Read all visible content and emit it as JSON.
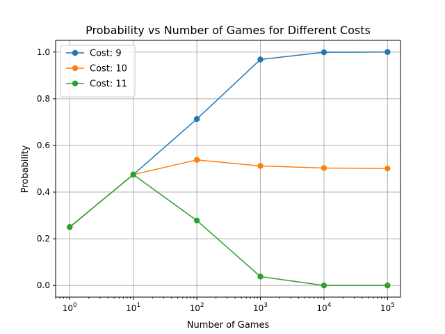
{
  "chart_data": {
    "type": "line",
    "title": "Probability vs Number of Games for Different Costs",
    "xlabel": "Number of Games",
    "ylabel": "Probability",
    "xscale": "log",
    "x": [
      1,
      10,
      100,
      1000,
      10000,
      100000
    ],
    "xlim": [
      0.6,
      160000
    ],
    "ylim": [
      -0.05,
      1.05
    ],
    "x_ticks": [
      {
        "value": 1,
        "base": "10",
        "exp": "0"
      },
      {
        "value": 10,
        "base": "10",
        "exp": "1"
      },
      {
        "value": 100,
        "base": "10",
        "exp": "2"
      },
      {
        "value": 1000,
        "base": "10",
        "exp": "3"
      },
      {
        "value": 10000,
        "base": "10",
        "exp": "4"
      },
      {
        "value": 100000,
        "base": "10",
        "exp": "5"
      }
    ],
    "y_ticks": [
      {
        "value": 0.0,
        "label": "0.0"
      },
      {
        "value": 0.2,
        "label": "0.2"
      },
      {
        "value": 0.4,
        "label": "0.4"
      },
      {
        "value": 0.6,
        "label": "0.6"
      },
      {
        "value": 0.8,
        "label": "0.8"
      },
      {
        "value": 1.0,
        "label": "1.0"
      }
    ],
    "grid": true,
    "legend_position": "top-left",
    "series": [
      {
        "name": "Cost: 9",
        "color": "#1f77b4",
        "values": [
          0.25,
          0.475,
          0.713,
          0.968,
          0.999,
          1.0
        ]
      },
      {
        "name": "Cost: 10",
        "color": "#ff7f0e",
        "values": [
          0.25,
          0.475,
          0.538,
          0.512,
          0.503,
          0.501
        ]
      },
      {
        "name": "Cost: 11",
        "color": "#2ca02c",
        "values": [
          0.25,
          0.475,
          0.278,
          0.038,
          0.0,
          0.0
        ]
      }
    ]
  }
}
